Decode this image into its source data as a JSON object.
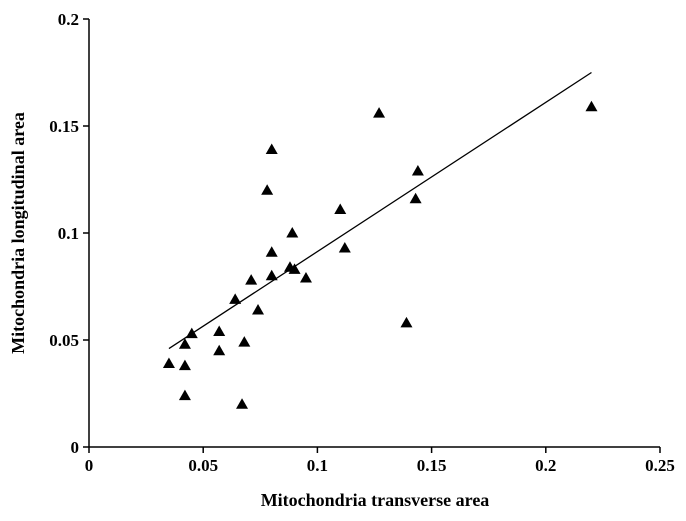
{
  "chart_data": {
    "type": "scatter",
    "title": "",
    "xlabel": "Mitochondria transverse area",
    "ylabel": "Mitochondria longitudinal area",
    "xlim": [
      0,
      0.25
    ],
    "ylim": [
      0,
      0.2
    ],
    "xticks": [
      0,
      0.05,
      0.1,
      0.15,
      0.2,
      0.25
    ],
    "yticks": [
      0,
      0.05,
      0.1,
      0.15,
      0.2
    ],
    "xtick_labels": [
      "0",
      "0.05",
      "0.1",
      "0.15",
      "0.2",
      "0.25"
    ],
    "ytick_labels": [
      "0",
      "0.05",
      "0.1",
      "0.15",
      "0.2"
    ],
    "grid": false,
    "marker": "triangle",
    "marker_color": "#000000",
    "points": [
      {
        "x": 0.035,
        "y": 0.039
      },
      {
        "x": 0.042,
        "y": 0.048
      },
      {
        "x": 0.042,
        "y": 0.038
      },
      {
        "x": 0.042,
        "y": 0.024
      },
      {
        "x": 0.045,
        "y": 0.053
      },
      {
        "x": 0.057,
        "y": 0.054
      },
      {
        "x": 0.057,
        "y": 0.045
      },
      {
        "x": 0.064,
        "y": 0.069
      },
      {
        "x": 0.067,
        "y": 0.02
      },
      {
        "x": 0.068,
        "y": 0.049
      },
      {
        "x": 0.071,
        "y": 0.078
      },
      {
        "x": 0.074,
        "y": 0.064
      },
      {
        "x": 0.078,
        "y": 0.12
      },
      {
        "x": 0.08,
        "y": 0.139
      },
      {
        "x": 0.08,
        "y": 0.091
      },
      {
        "x": 0.08,
        "y": 0.08
      },
      {
        "x": 0.088,
        "y": 0.084
      },
      {
        "x": 0.089,
        "y": 0.1
      },
      {
        "x": 0.09,
        "y": 0.083
      },
      {
        "x": 0.095,
        "y": 0.079
      },
      {
        "x": 0.11,
        "y": 0.111
      },
      {
        "x": 0.112,
        "y": 0.093
      },
      {
        "x": 0.127,
        "y": 0.156
      },
      {
        "x": 0.139,
        "y": 0.058
      },
      {
        "x": 0.143,
        "y": 0.116
      },
      {
        "x": 0.144,
        "y": 0.129
      },
      {
        "x": 0.22,
        "y": 0.159
      }
    ],
    "regression_line": {
      "x": [
        0.035,
        0.22
      ],
      "y": [
        0.046,
        0.175
      ]
    }
  }
}
